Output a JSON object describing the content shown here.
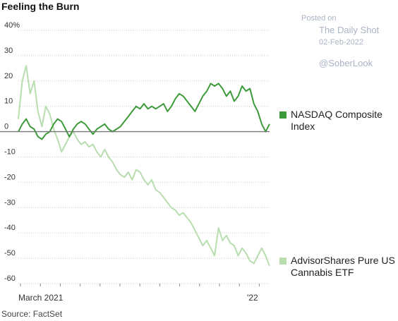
{
  "header": {
    "title": "Feeling the Burn"
  },
  "footer": {
    "source": "Source: FactSet"
  },
  "watermark": {
    "posted": "Posted on",
    "site": "The Daily Shot",
    "date": "02-Feb-2022",
    "handle": "@SoberLook"
  },
  "chart_data": {
    "type": "line",
    "title": "Feeling the Burn",
    "xlabel": "",
    "ylabel": "",
    "ylim": [
      -60,
      40
    ],
    "y_ticks": [
      40,
      30,
      20,
      10,
      0,
      -10,
      -20,
      -30,
      -40,
      -50,
      -60
    ],
    "y_tick_labels": [
      "40%",
      "30",
      "20",
      "10",
      "0",
      "-10",
      "-20",
      "-30",
      "-40",
      "-50",
      "-60"
    ],
    "x_tick_labels": [
      "March 2021",
      "'22"
    ],
    "grid": "horizontal dotted",
    "legend": "right",
    "series": [
      {
        "name": "NASDAQ Composite Index",
        "color": "#3d9a3a",
        "points": [
          [
            0,
            0
          ],
          [
            2,
            3
          ],
          [
            4,
            5
          ],
          [
            6,
            2
          ],
          [
            8,
            1
          ],
          [
            10,
            -2
          ],
          [
            12,
            -3
          ],
          [
            14,
            -1
          ],
          [
            16,
            0
          ],
          [
            18,
            3
          ],
          [
            20,
            5
          ],
          [
            22,
            4
          ],
          [
            24,
            1
          ],
          [
            26,
            -2
          ],
          [
            28,
            1
          ],
          [
            30,
            3
          ],
          [
            32,
            4
          ],
          [
            34,
            3
          ],
          [
            36,
            1
          ],
          [
            38,
            -1
          ],
          [
            40,
            1
          ],
          [
            42,
            2
          ],
          [
            44,
            3
          ],
          [
            46,
            1
          ],
          [
            48,
            0
          ],
          [
            50,
            1
          ],
          [
            52,
            2
          ],
          [
            54,
            4
          ],
          [
            56,
            6
          ],
          [
            58,
            8
          ],
          [
            60,
            10
          ],
          [
            62,
            9
          ],
          [
            64,
            11
          ],
          [
            66,
            9
          ],
          [
            68,
            10
          ],
          [
            70,
            9
          ],
          [
            72,
            10
          ],
          [
            74,
            11
          ],
          [
            76,
            8
          ],
          [
            78,
            10
          ],
          [
            80,
            13
          ],
          [
            82,
            15
          ],
          [
            84,
            14
          ],
          [
            86,
            12
          ],
          [
            88,
            10
          ],
          [
            90,
            8
          ],
          [
            92,
            11
          ],
          [
            94,
            14
          ],
          [
            96,
            16
          ],
          [
            98,
            19
          ],
          [
            100,
            18
          ],
          [
            102,
            19
          ],
          [
            104,
            17
          ],
          [
            106,
            14
          ],
          [
            108,
            16
          ],
          [
            110,
            12
          ],
          [
            112,
            14
          ],
          [
            114,
            18
          ],
          [
            116,
            16
          ],
          [
            118,
            17
          ],
          [
            120,
            11
          ],
          [
            122,
            8
          ],
          [
            124,
            3
          ],
          [
            126,
            0
          ],
          [
            128,
            3
          ]
        ]
      },
      {
        "name": "AdvisorShares Pure US Cannabis ETF",
        "color": "#b8ddae",
        "points": [
          [
            0,
            5
          ],
          [
            2,
            20
          ],
          [
            4,
            26
          ],
          [
            6,
            15
          ],
          [
            8,
            20
          ],
          [
            10,
            8
          ],
          [
            12,
            2
          ],
          [
            14,
            10
          ],
          [
            16,
            7
          ],
          [
            18,
            1
          ],
          [
            20,
            -3
          ],
          [
            22,
            -8
          ],
          [
            24,
            -5
          ],
          [
            26,
            -2
          ],
          [
            28,
            0
          ],
          [
            30,
            -3
          ],
          [
            32,
            -5
          ],
          [
            34,
            -4
          ],
          [
            36,
            -6
          ],
          [
            38,
            -5
          ],
          [
            40,
            -8
          ],
          [
            42,
            -10
          ],
          [
            44,
            -7
          ],
          [
            46,
            -10
          ],
          [
            48,
            -12
          ],
          [
            50,
            -15
          ],
          [
            52,
            -17
          ],
          [
            54,
            -18
          ],
          [
            56,
            -16
          ],
          [
            58,
            -19
          ],
          [
            60,
            -15
          ],
          [
            62,
            -16
          ],
          [
            64,
            -19
          ],
          [
            66,
            -21
          ],
          [
            68,
            -19
          ],
          [
            70,
            -23
          ],
          [
            72,
            -24
          ],
          [
            74,
            -26
          ],
          [
            76,
            -28
          ],
          [
            78,
            -30
          ],
          [
            80,
            -31
          ],
          [
            82,
            -33
          ],
          [
            84,
            -32
          ],
          [
            86,
            -34
          ],
          [
            88,
            -36
          ],
          [
            90,
            -39
          ],
          [
            92,
            -42
          ],
          [
            94,
            -45
          ],
          [
            96,
            -43
          ],
          [
            98,
            -46
          ],
          [
            100,
            -49
          ],
          [
            102,
            -38
          ],
          [
            104,
            -43
          ],
          [
            106,
            -41
          ],
          [
            108,
            -44
          ],
          [
            110,
            -45
          ],
          [
            112,
            -49
          ],
          [
            114,
            -46
          ],
          [
            116,
            -48
          ],
          [
            118,
            -51
          ],
          [
            120,
            -52
          ],
          [
            122,
            -49
          ],
          [
            124,
            -46
          ],
          [
            126,
            -49
          ],
          [
            128,
            -53
          ]
        ]
      }
    ]
  }
}
